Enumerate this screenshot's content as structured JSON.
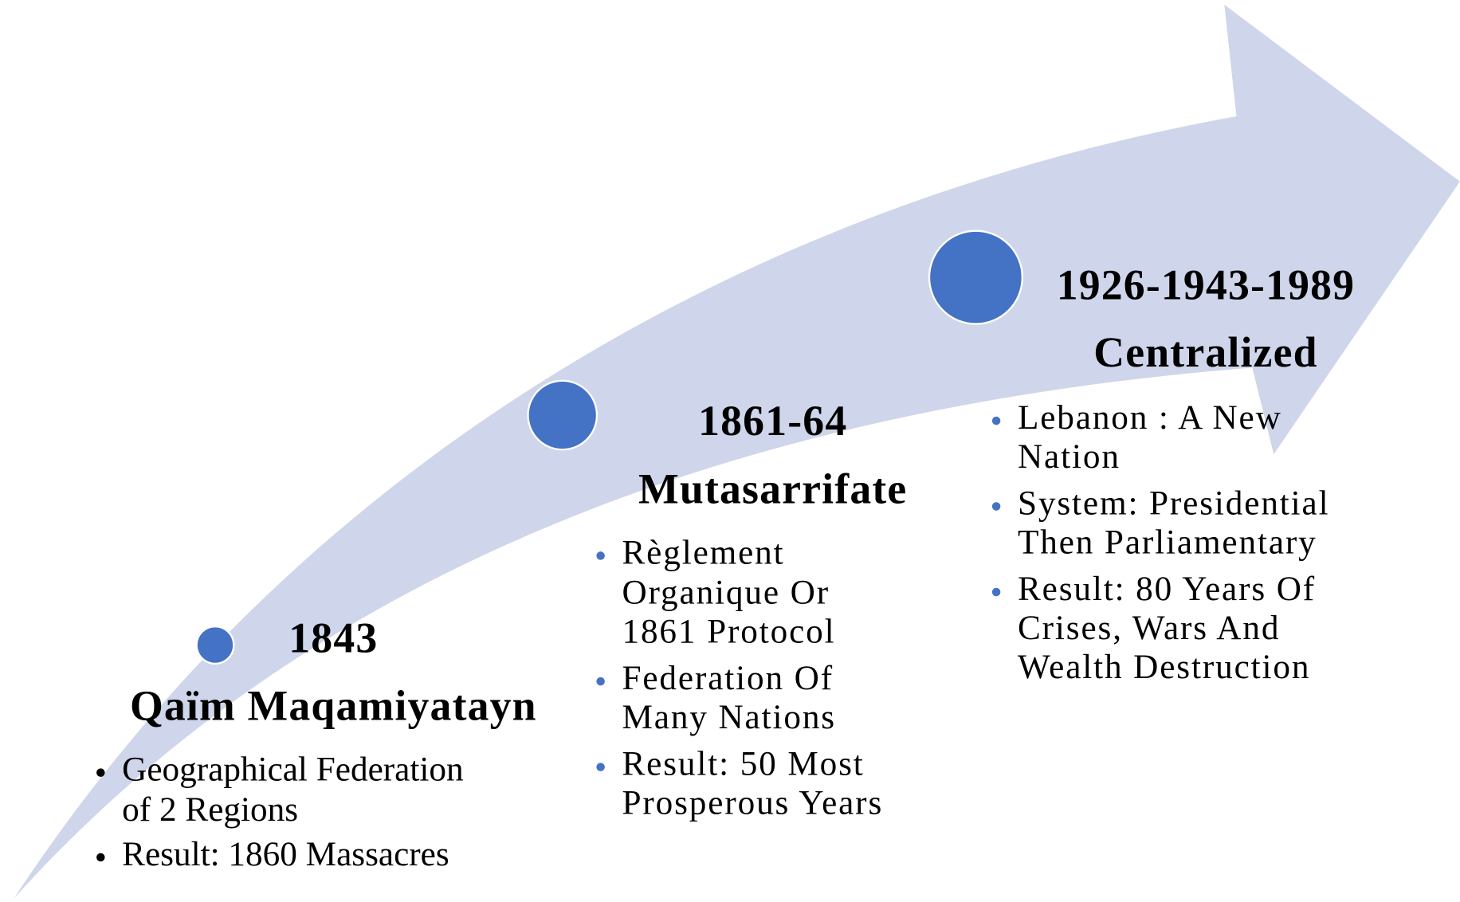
{
  "nodes": [
    {
      "title": "1843",
      "subtitle": "Qaïm Maqamiyatayn",
      "bullets": [
        [
          "Geographical Federation",
          "of 2 Regions"
        ],
        [
          "Result: 1860 Massacres"
        ]
      ]
    },
    {
      "title": "1861-64",
      "subtitle": "Mutasarrifate",
      "bullets": [
        [
          "Règlement",
          "Organique Or",
          "1861 Protocol"
        ],
        [
          "Federation Of",
          "Many Nations"
        ],
        [
          "Result: 50 Most",
          "Prosperous Years"
        ]
      ]
    },
    {
      "title": "1926-1943-1989",
      "subtitle": "Centralized",
      "bullets": [
        [
          "Lebanon : A New",
          "Nation"
        ],
        [
          "System: Presidential",
          "Then Parliamentary"
        ],
        [
          "Result: 80 Years Of",
          "Crises, Wars And",
          "Wealth Destruction"
        ]
      ]
    }
  ]
}
